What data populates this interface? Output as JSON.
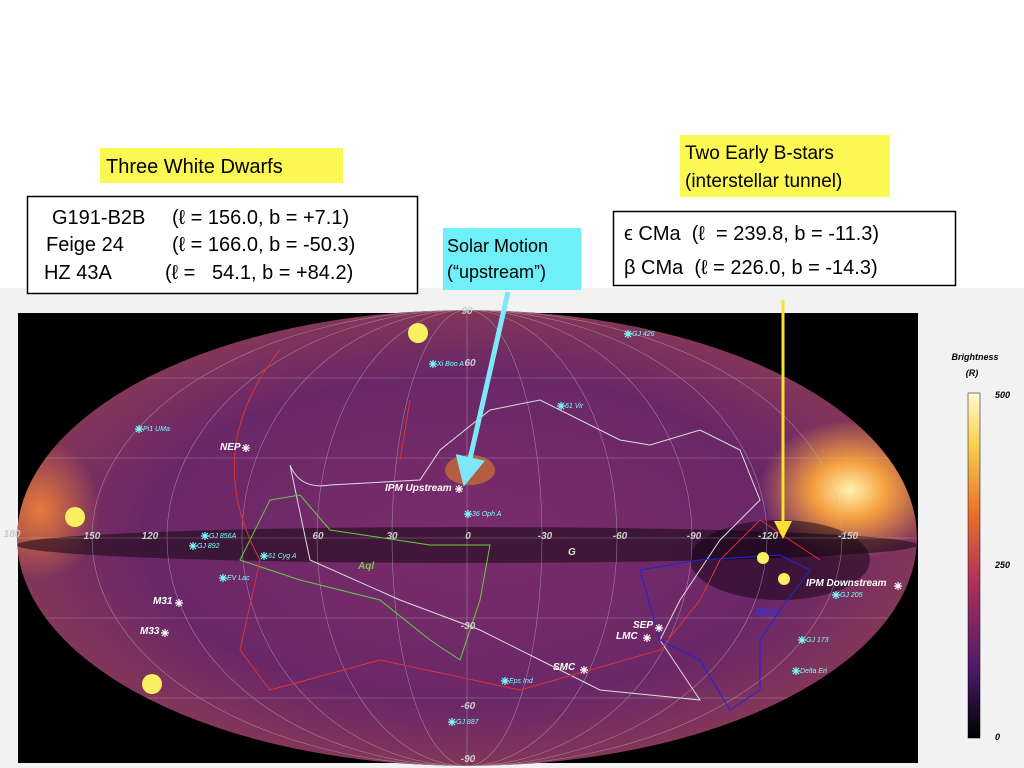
{
  "labels": {
    "white_dwarfs": "Three White Dwarfs",
    "solar_motion": [
      "Solar Motion",
      "(“upstream”)"
    ],
    "b_stars": [
      "Two Early B-stars",
      "(interstellar tunnel)"
    ]
  },
  "white_dwarf_table": [
    {
      "name": "G191-B2B",
      "coords": "(ℓ = 156.0, b = +7.1)"
    },
    {
      "name": "Feige 24",
      "coords": "(ℓ = 166.0, b = -50.3)"
    },
    {
      "name": "HZ 43A",
      "coords": "(ℓ =   54.1, b = +84.2)"
    }
  ],
  "b_star_table": [
    "ϵ CMa  (ℓ  = 239.8, b = -11.3)",
    "β CMa  (ℓ = 226.0, b = -14.3)"
  ],
  "map": {
    "longitudes": [
      "180",
      "150",
      "120",
      "60",
      "30",
      "0",
      "-30",
      "-60",
      "-90",
      "-120",
      "-150"
    ],
    "latitudes": [
      "90",
      "60",
      "-30",
      "-60",
      "-90"
    ],
    "objects": [
      "NEP",
      "IPM Upstream",
      "M31",
      "M33",
      "SEP",
      "LMC",
      "SMC",
      "IPM Downstream"
    ],
    "regions": [
      "Aql",
      "Blue",
      "G"
    ],
    "stars": [
      "GJ 426",
      "Xi Boo A",
      "61 Vir",
      "Pi1 UMa",
      "36 Oph A",
      "GJ 856A",
      "GJ 892",
      "61 Cyg A",
      "EV Lac",
      "Eps Ind",
      "GJ 887",
      "GJ 205",
      "GJ 173",
      "Delta Eri"
    ]
  },
  "colorbar": {
    "title": "Brightness",
    "unit": "(R)",
    "ticks": [
      "500",
      "250",
      "0"
    ]
  }
}
